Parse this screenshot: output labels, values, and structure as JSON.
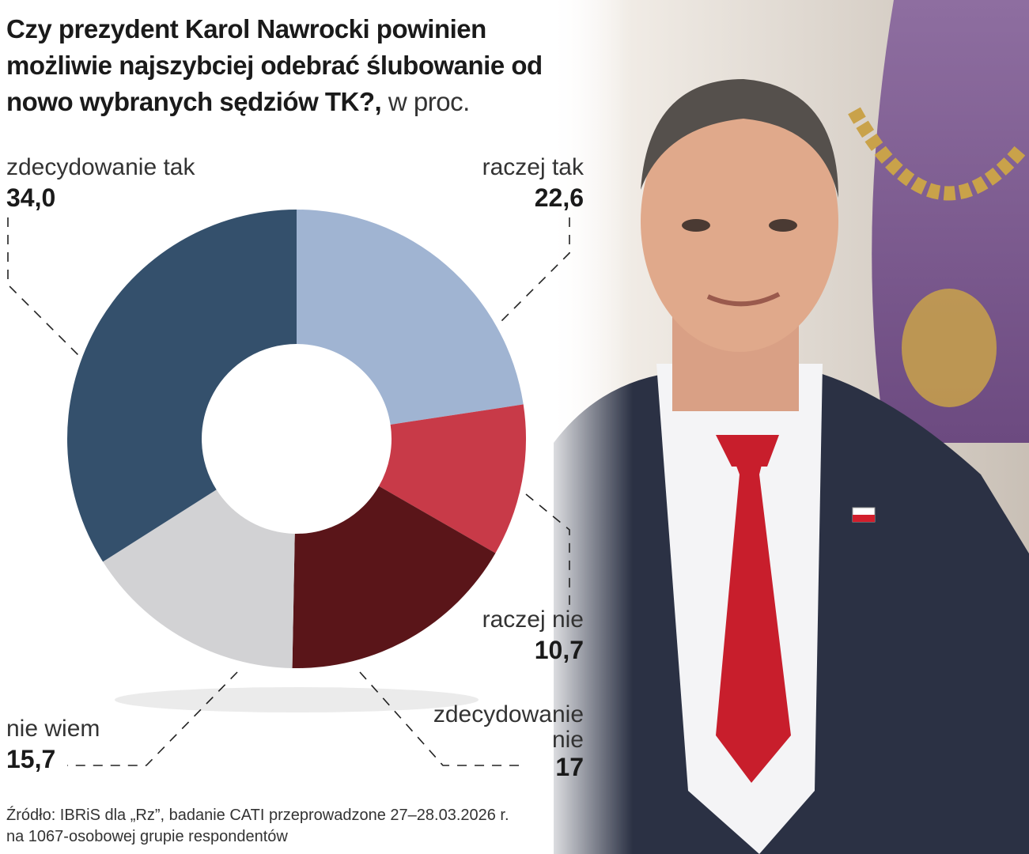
{
  "chart_data": {
    "type": "donut",
    "title": "Czy prezydent Karol Nawrocki powinien możliwie najszybciej odebrać ślubowanie od nowo wybranych sędziów TK?,",
    "unit": "w proc.",
    "categories": [
      "raczej tak",
      "raczej nie",
      "zdecydowanie nie",
      "nie wiem",
      "zdecydowanie tak"
    ],
    "values": [
      22.6,
      10.7,
      17,
      15.7,
      34.0
    ],
    "value_labels": [
      "22,6",
      "10,7",
      "17",
      "15,7",
      "34,0"
    ],
    "colors": [
      "#a0b4d2",
      "#c83a48",
      "#5a1519",
      "#d2d2d4",
      "#34506c"
    ],
    "source": [
      "Źródło: IBRiS dla „Rz”, badanie CATI przeprowadzone 27–28.03.2026 r.",
      "na 1067-osobowej grupie respondentów"
    ]
  }
}
